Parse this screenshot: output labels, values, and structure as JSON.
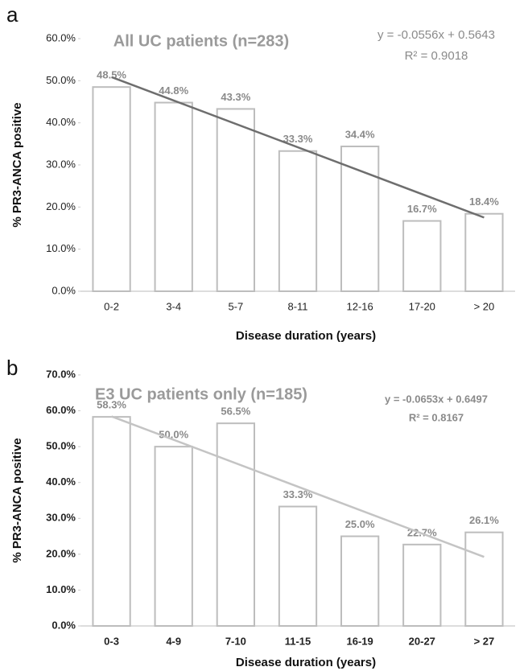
{
  "chart_data": [
    {
      "type": "bar",
      "panel": "a",
      "title": "All UC patients (n=283)",
      "x_label": "Disease duration (years)",
      "y_label": "% PR3-ANCA positive",
      "categories": [
        "0-2",
        "3-4",
        "5-7",
        "8-11",
        "12-16",
        "17-20",
        "> 20"
      ],
      "values": [
        48.5,
        44.8,
        43.3,
        33.3,
        34.4,
        16.7,
        18.4
      ],
      "value_labels": [
        "48.5%",
        "44.8%",
        "43.3%",
        "33.3%",
        "34.4%",
        "16.7%",
        "18.4%"
      ],
      "color": "#bdbdbd",
      "ylim": [
        0,
        60
      ],
      "yticks": [
        {
          "value": 0,
          "label": "0.0%"
        },
        {
          "value": 10,
          "label": "10.0%"
        },
        {
          "value": 20,
          "label": "20.0%"
        },
        {
          "value": 30,
          "label": "30.0%"
        },
        {
          "value": 40,
          "label": "40.0%"
        },
        {
          "value": 50,
          "label": "50.0%"
        },
        {
          "value": 60,
          "label": "60.0%"
        }
      ],
      "trendline": {
        "equation": "y = -0.0556x + 0.5643",
        "r2": "R² = 0.9018",
        "slope": -5.56,
        "intercept": 56.43,
        "color": "#6e6e6e"
      }
    },
    {
      "type": "bar",
      "panel": "b",
      "title": "E3 UC patients only (n=185)",
      "x_label": "Disease duration (years)",
      "y_label": "% PR3-ANCA positive",
      "categories": [
        "0-3",
        "4-9",
        "7-10",
        "11-15",
        "16-19",
        "20-27",
        "> 27"
      ],
      "values": [
        58.3,
        50.0,
        56.5,
        33.3,
        25.0,
        22.7,
        26.1
      ],
      "value_labels": [
        "58.3%",
        "50.0%",
        "56.5%",
        "33.3%",
        "25.0%",
        "22.7%",
        "26.1%"
      ],
      "color": "#bdbdbd",
      "ylim": [
        0,
        70
      ],
      "yticks": [
        {
          "value": 0,
          "label": "0.0%"
        },
        {
          "value": 10,
          "label": "10.0%"
        },
        {
          "value": 20,
          "label": "20.0%"
        },
        {
          "value": 30,
          "label": "30.0%"
        },
        {
          "value": 40,
          "label": "40.0%"
        },
        {
          "value": 50,
          "label": "50.0%"
        },
        {
          "value": 60,
          "label": "60.0%"
        },
        {
          "value": 70,
          "label": "70.0%"
        }
      ],
      "trendline": {
        "equation": "y = -0.0653x + 0.6497",
        "r2": "R² = 0.8167",
        "slope": -6.53,
        "intercept": 64.97,
        "color": "#c4c4c4"
      }
    }
  ]
}
